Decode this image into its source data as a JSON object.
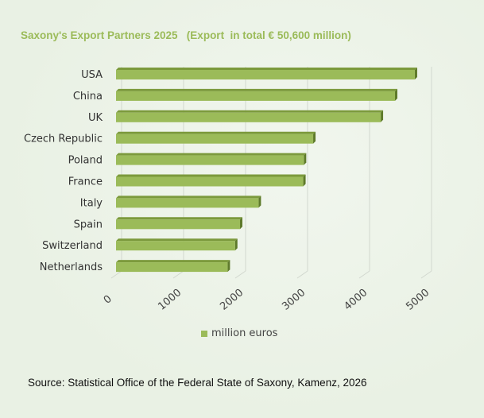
{
  "chart_data": {
    "type": "bar",
    "orientation": "horizontal",
    "title": "Saxony's Export Partners 2025   (Export  in total € 50,600 million)",
    "categories": [
      "USA",
      "China",
      "UK",
      "Czech Republic",
      "Poland",
      "France",
      "Italy",
      "Spain",
      "Switzerland",
      "Netherlands"
    ],
    "series": [
      {
        "name": "million euros",
        "values": [
          4820,
          4500,
          4270,
          3180,
          3030,
          3020,
          2300,
          2000,
          1920,
          1800
        ]
      }
    ],
    "xlim": [
      0,
      5000
    ],
    "xticks": [
      "0",
      "1000",
      "2000",
      "3000",
      "4000",
      "5000"
    ],
    "grid": true,
    "legend": "bottom",
    "bar_color": "#9bbb59",
    "source": "Source: Statistical Office of the Federal State of Saxony, Kamenz, 2026"
  }
}
